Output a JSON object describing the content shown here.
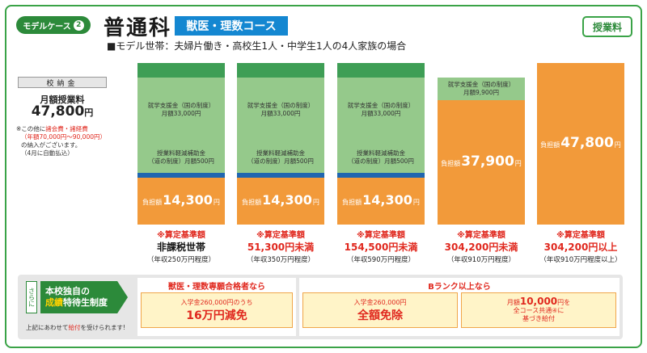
{
  "badge": {
    "text": "モデルケース",
    "num": "2"
  },
  "title": "普通科",
  "course": "獣医・理数コース",
  "tuition_button": "授業料",
  "model": "■モデル世帯：夫婦片働き・高校生1人・中学生1人の4人家族の場合",
  "fees": {
    "header": "校納金",
    "label": "月額授業料",
    "amount": "47,800",
    "unit": "円",
    "note_prefix": "※この他に",
    "note_red": "諸会費・諸経費",
    "note_range": "（年額70,000円〜90,000円）",
    "note_line3": "の納入がございます。",
    "note_line4": "（4月に自動払込）"
  },
  "columns": [
    {
      "support_title": "就学支援金（国の制度）",
      "support_amount": "月額33,000円",
      "subsidy_title": "授業料軽減補助金",
      "subsidy_amount": "（道の制度）月額500円",
      "burden_label": "負担額",
      "burden_amount": "14,300",
      "burden_unit": "円",
      "star": "※算定基準額",
      "condition": "非課税世帯",
      "income": "（年収250万円程度）"
    },
    {
      "support_title": "就学支援金（国の制度）",
      "support_amount": "月額33,000円",
      "subsidy_title": "授業料軽減補助金",
      "subsidy_amount": "（道の制度）月額500円",
      "burden_label": "負担額",
      "burden_amount": "14,300",
      "burden_unit": "円",
      "star": "※算定基準額",
      "condition": "51,300円未満",
      "income": "（年収350万円程度）"
    },
    {
      "support_title": "就学支援金（国の制度）",
      "support_amount": "月額33,000円",
      "subsidy_title": "授業料軽減補助金",
      "subsidy_amount": "（道の制度）月額500円",
      "burden_label": "負担額",
      "burden_amount": "14,300",
      "burden_unit": "円",
      "star": "※算定基準額",
      "condition": "154,500円未満",
      "income": "（年収590万円程度）"
    },
    {
      "support_title": "就学支援金（国の制度）",
      "support_amount": "月額9,900円",
      "burden_label": "負担額",
      "burden_amount": "37,900",
      "burden_unit": "円",
      "star": "※算定基準額",
      "condition": "304,200円未満",
      "income": "（年収910万円程度）"
    },
    {
      "burden_label": "負担額",
      "burden_amount": "47,800",
      "burden_unit": "円",
      "star": "※算定基準額",
      "condition": "304,200円以上",
      "income": "（年収910万円程度以上）"
    }
  ],
  "scholarship": {
    "sarani": "さらに",
    "line1": "本校独自の",
    "line2_yellow": "成績",
    "line2_rest": "特待生制度",
    "note_prefix": "上記にあわせて",
    "note_red": "給付",
    "note_suffix": "を受けられます!",
    "pane1_title": "獣医・理数専願合格者なら",
    "pane1_l1": "入学金260,000円のうち",
    "pane1_l2": "16万円減免",
    "pane2_title": "Bランク以上なら",
    "pane2_a_l1": "入学金260,000円",
    "pane2_a_l2": "全額免除",
    "pane2_b_l1a": "月額",
    "pane2_b_l1b": "10,000",
    "pane2_b_l1c": "円を",
    "pane2_b_l2": "全コース共通④に",
    "pane2_b_l3": "基づき給付"
  }
}
